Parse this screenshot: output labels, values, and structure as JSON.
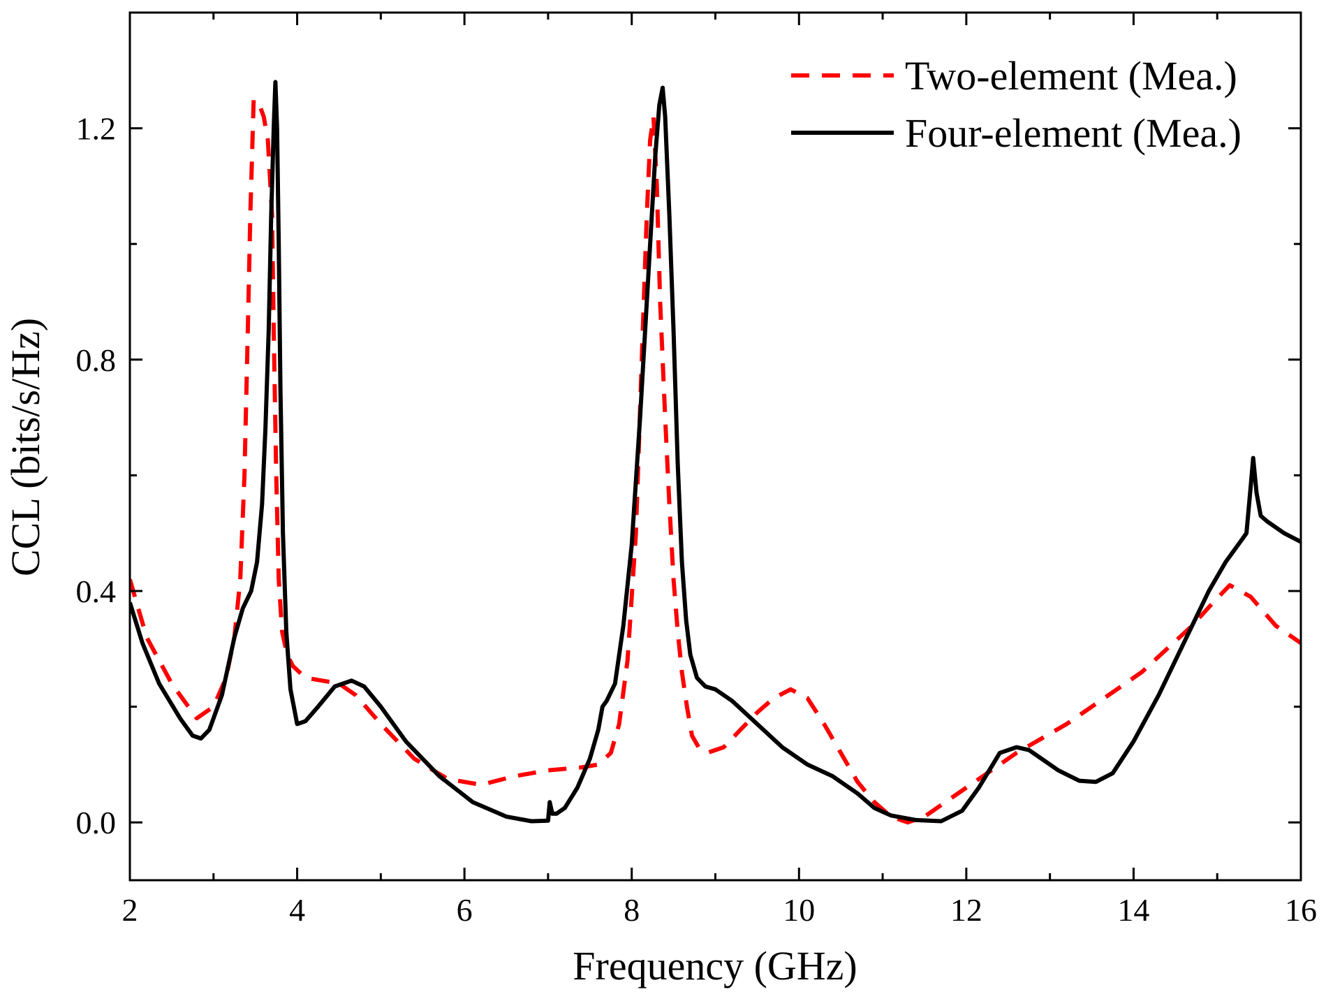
{
  "chart_data": {
    "type": "line",
    "title": "",
    "xlabel": "Frequency (GHz)",
    "ylabel": "CCL (bits/s/Hz)",
    "xlim": [
      2,
      16
    ],
    "ylim": [
      -0.1,
      1.4
    ],
    "xticks": [
      2,
      4,
      6,
      8,
      10,
      12,
      14,
      16
    ],
    "xtick_labels": [
      "2",
      "4",
      "6",
      "8",
      "10",
      "12",
      "14",
      "16"
    ],
    "yticks": [
      0.0,
      0.4,
      0.8,
      1.2
    ],
    "ytick_labels": [
      "0.0",
      "0.4",
      "0.8",
      "1.2"
    ],
    "grid": false,
    "legend_position": "top-right",
    "series": [
      {
        "name": "Two-element (Mea.)",
        "color": "#ff0000",
        "style": "dashed",
        "x": [
          2.0,
          2.2,
          2.5,
          2.8,
          3.0,
          3.15,
          3.25,
          3.32,
          3.37,
          3.41,
          3.44,
          3.48,
          3.55,
          3.6,
          3.65,
          3.7,
          3.72,
          3.75,
          3.78,
          3.82,
          3.88,
          3.95,
          4.1,
          4.3,
          4.5,
          4.7,
          5.0,
          5.4,
          5.8,
          6.2,
          6.6,
          7.0,
          7.4,
          7.6,
          7.75,
          7.85,
          7.95,
          8.05,
          8.12,
          8.18,
          8.22,
          8.26,
          8.3,
          8.34,
          8.4,
          8.45,
          8.5,
          8.55,
          8.6,
          8.66,
          8.72,
          8.8,
          8.9,
          9.1,
          9.3,
          9.5,
          9.7,
          9.9,
          10.1,
          10.3,
          10.5,
          10.7,
          10.9,
          11.1,
          11.3,
          11.5,
          11.7,
          12.0,
          12.3,
          12.6,
          12.9,
          13.2,
          13.5,
          13.8,
          14.1,
          14.4,
          14.7,
          14.95,
          15.15,
          15.4,
          15.7,
          16.0
        ],
        "y": [
          0.42,
          0.32,
          0.24,
          0.18,
          0.2,
          0.25,
          0.32,
          0.42,
          0.6,
          0.85,
          1.05,
          1.25,
          1.24,
          1.22,
          1.18,
          1.05,
          0.85,
          0.6,
          0.42,
          0.33,
          0.29,
          0.27,
          0.25,
          0.245,
          0.24,
          0.22,
          0.17,
          0.11,
          0.075,
          0.065,
          0.08,
          0.09,
          0.095,
          0.1,
          0.12,
          0.17,
          0.28,
          0.5,
          0.8,
          1.05,
          1.18,
          1.22,
          1.1,
          0.9,
          0.7,
          0.55,
          0.42,
          0.33,
          0.26,
          0.2,
          0.15,
          0.13,
          0.12,
          0.13,
          0.16,
          0.19,
          0.215,
          0.23,
          0.215,
          0.17,
          0.12,
          0.07,
          0.035,
          0.01,
          0.0,
          0.01,
          0.03,
          0.06,
          0.09,
          0.12,
          0.145,
          0.17,
          0.2,
          0.23,
          0.26,
          0.3,
          0.34,
          0.38,
          0.41,
          0.39,
          0.34,
          0.31
        ]
      },
      {
        "name": "Four-element (Mea.)",
        "color": "#000000",
        "style": "solid",
        "x": [
          2.0,
          2.15,
          2.35,
          2.6,
          2.75,
          2.85,
          2.95,
          3.1,
          3.25,
          3.35,
          3.45,
          3.52,
          3.58,
          3.62,
          3.66,
          3.69,
          3.72,
          3.74,
          3.76,
          3.78,
          3.8,
          3.83,
          3.87,
          3.92,
          4.0,
          4.1,
          4.25,
          4.45,
          4.65,
          4.8,
          5.0,
          5.3,
          5.7,
          6.1,
          6.5,
          6.8,
          7.0,
          7.02,
          7.05,
          7.1,
          7.2,
          7.35,
          7.5,
          7.6,
          7.65,
          7.7,
          7.8,
          7.9,
          8.0,
          8.1,
          8.2,
          8.28,
          8.33,
          8.37,
          8.4,
          8.45,
          8.5,
          8.55,
          8.6,
          8.65,
          8.7,
          8.78,
          8.88,
          9.0,
          9.2,
          9.5,
          9.8,
          10.1,
          10.4,
          10.7,
          10.9,
          11.1,
          11.4,
          11.7,
          11.95,
          12.15,
          12.4,
          12.6,
          12.75,
          12.9,
          13.1,
          13.35,
          13.55,
          13.75,
          14.0,
          14.3,
          14.6,
          14.9,
          15.1,
          15.3,
          15.35,
          15.4,
          15.43,
          15.47,
          15.52,
          15.6,
          15.8,
          16.0
        ],
        "y": [
          0.38,
          0.31,
          0.24,
          0.18,
          0.15,
          0.145,
          0.16,
          0.22,
          0.32,
          0.37,
          0.4,
          0.45,
          0.55,
          0.68,
          0.85,
          1.05,
          1.2,
          1.28,
          1.2,
          1.0,
          0.75,
          0.5,
          0.33,
          0.23,
          0.17,
          0.175,
          0.2,
          0.235,
          0.245,
          0.235,
          0.2,
          0.14,
          0.08,
          0.035,
          0.01,
          0.002,
          0.003,
          0.035,
          0.015,
          0.015,
          0.025,
          0.06,
          0.11,
          0.16,
          0.2,
          0.21,
          0.24,
          0.34,
          0.48,
          0.7,
          0.95,
          1.15,
          1.24,
          1.27,
          1.22,
          1.05,
          0.85,
          0.62,
          0.45,
          0.35,
          0.29,
          0.25,
          0.235,
          0.23,
          0.21,
          0.17,
          0.13,
          0.1,
          0.08,
          0.05,
          0.025,
          0.012,
          0.004,
          0.002,
          0.02,
          0.06,
          0.12,
          0.13,
          0.125,
          0.11,
          0.09,
          0.072,
          0.07,
          0.085,
          0.14,
          0.22,
          0.31,
          0.4,
          0.45,
          0.49,
          0.5,
          0.58,
          0.63,
          0.57,
          0.53,
          0.52,
          0.5,
          0.485
        ]
      }
    ]
  }
}
